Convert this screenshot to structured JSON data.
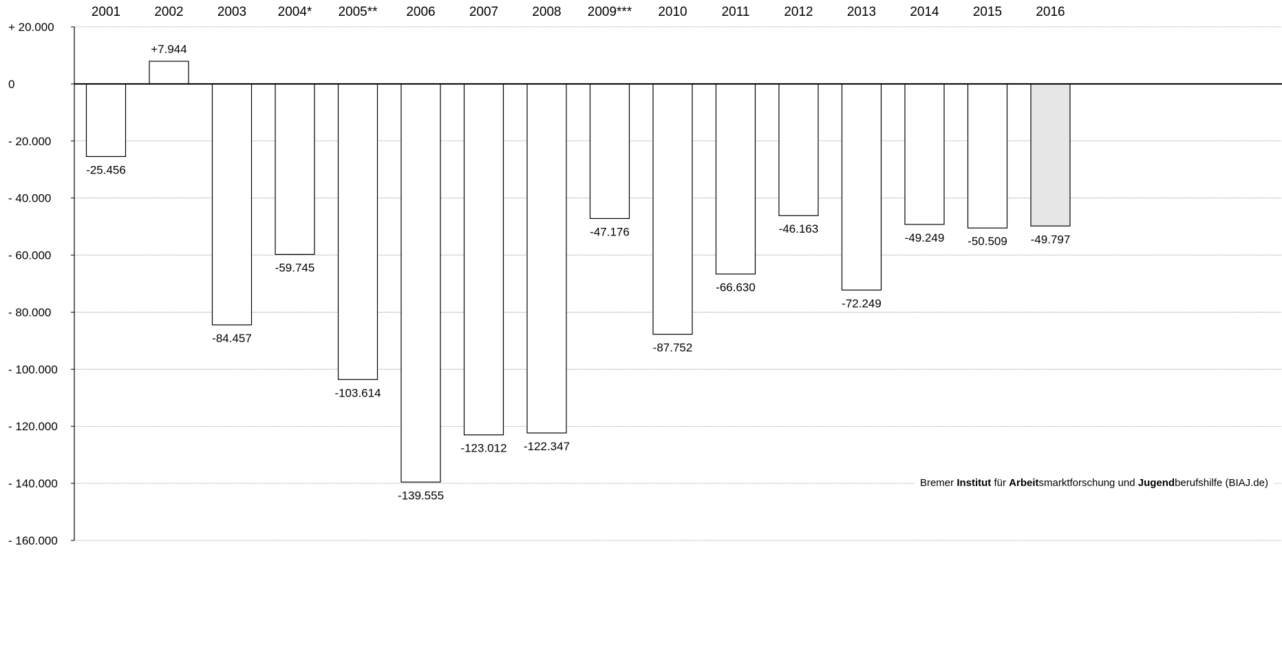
{
  "chart_data": {
    "type": "bar",
    "categories": [
      "2001",
      "2002",
      "2003",
      "2004*",
      "2005**",
      "2006",
      "2007",
      "2008",
      "2009***",
      "2010",
      "2011",
      "2012",
      "2013",
      "2014",
      "2015",
      "2016"
    ],
    "values": [
      -25456,
      7944,
      -84457,
      -59745,
      -103614,
      -139555,
      -123012,
      -122347,
      -47176,
      -87752,
      -66630,
      -46163,
      -72249,
      -49249,
      -50509,
      -49797
    ],
    "value_labels": [
      "-25.456",
      "+7.944",
      "-84.457",
      "-59.745",
      "-103.614",
      "-139.555",
      "-123.012",
      "-122.347",
      "-47.176",
      "-87.752",
      "-66.630",
      "-46.163",
      "-72.249",
      "-49.249",
      "-50.509",
      "-49.797"
    ],
    "ylim": [
      -160000,
      20000
    ],
    "y_ticks": [
      20000,
      0,
      -20000,
      -40000,
      -60000,
      -80000,
      -100000,
      -120000,
      -140000,
      -160000
    ],
    "y_tick_labels": [
      "+ 20.000",
      "0",
      "- 20.000",
      "- 40.000",
      "- 60.000",
      "- 80.000",
      "- 100.000",
      "- 120.000",
      "- 140.000",
      "- 160.000"
    ],
    "category_axis_position": "top",
    "grid": true,
    "highlight_index": 15,
    "colors": {
      "bar": "#ffffff",
      "highlight": "#e6e6e6",
      "stroke": "#000000",
      "grid": "#999999"
    },
    "title": "",
    "xlabel": "",
    "ylabel": ""
  },
  "source_note": {
    "parts": [
      {
        "text": "Bremer ",
        "bold": false
      },
      {
        "text": "Institut",
        "bold": true
      },
      {
        "text": " für ",
        "bold": false
      },
      {
        "text": "Arbeit",
        "bold": true
      },
      {
        "text": "smarktforschung und ",
        "bold": false
      },
      {
        "text": "Jugend",
        "bold": true
      },
      {
        "text": "berufshilfe (BIAJ.de)",
        "bold": false
      }
    ]
  }
}
